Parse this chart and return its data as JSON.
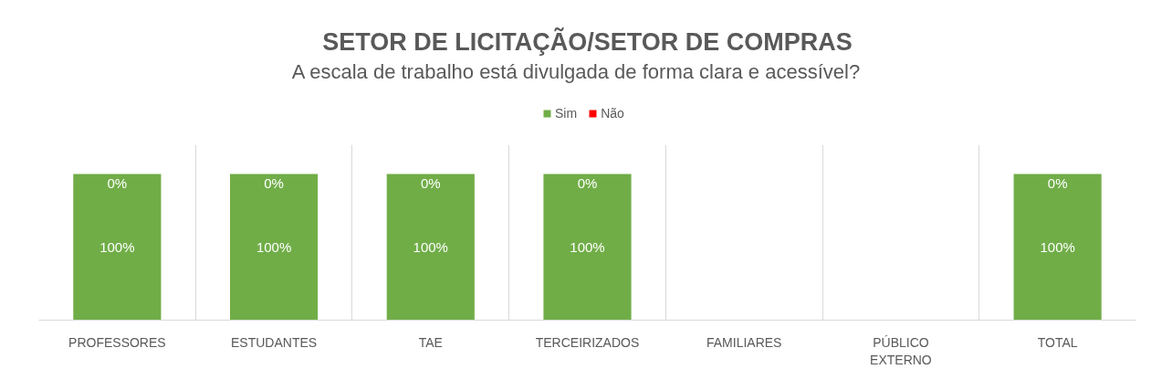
{
  "chart_data": {
    "type": "bar",
    "title": "SETOR DE LICITAÇÃO/SETOR DE COMPRAS",
    "subtitle": "A escala de trabalho está divulgada de forma clara e acessível?",
    "categories": [
      "PROFESSORES",
      "ESTUDANTES",
      "TAE",
      "TERCEIRIZADOS",
      "FAMILIARES",
      "PÚBLICO EXTERNO",
      "TOTAL"
    ],
    "stacked": true,
    "series": [
      {
        "name": "Sim",
        "color": "#70ad47",
        "values": [
          100,
          100,
          100,
          100,
          null,
          null,
          100
        ],
        "value_labels": [
          "100%",
          "100%",
          "100%",
          "100%",
          null,
          null,
          "100%"
        ]
      },
      {
        "name": "Não",
        "color": "#ff0000",
        "values": [
          0,
          0,
          0,
          0,
          null,
          null,
          0
        ],
        "value_labels": [
          "0%",
          "0%",
          "0%",
          "0%",
          null,
          null,
          "0%"
        ]
      }
    ],
    "ylim": [
      0,
      120
    ],
    "grid": "x",
    "legend": "top",
    "tick_labels": "x"
  }
}
